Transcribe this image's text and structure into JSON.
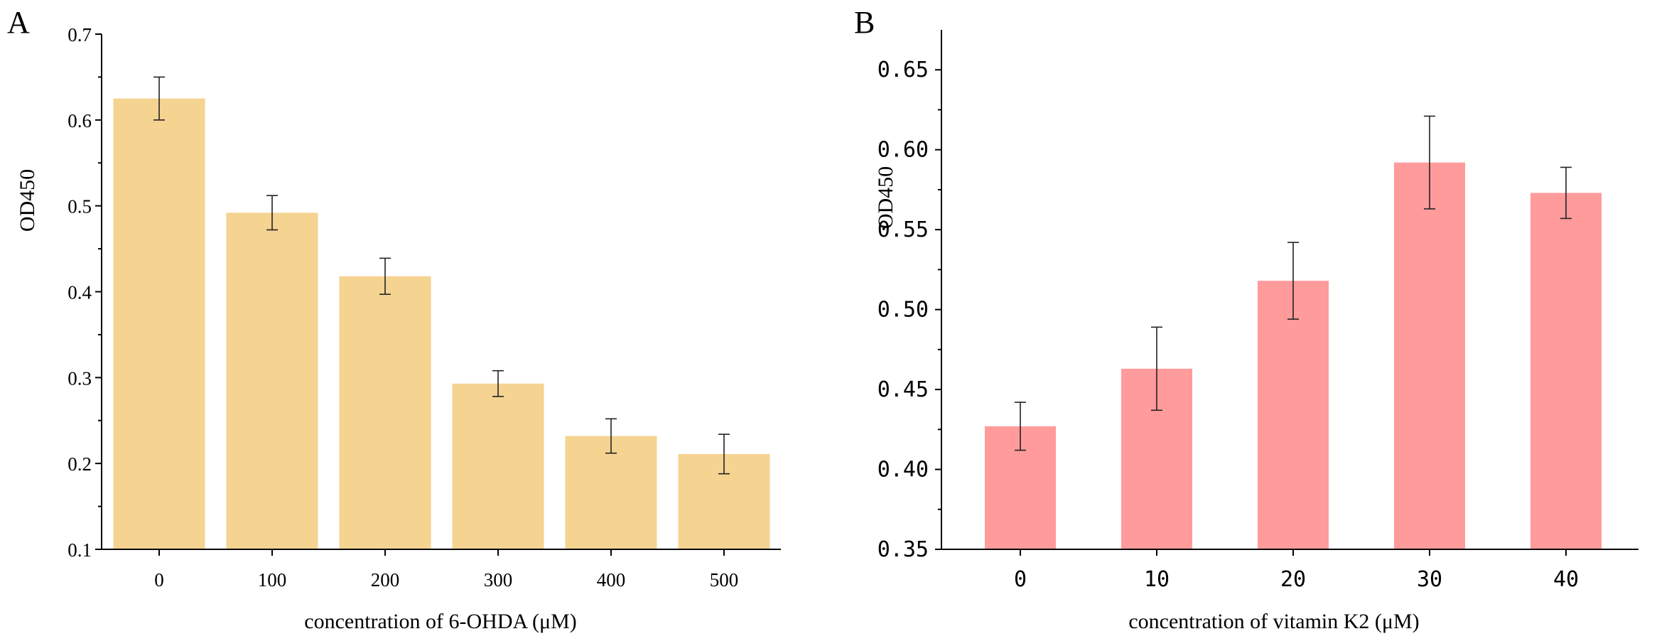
{
  "chart_data": [
    {
      "panel": "A",
      "type": "bar",
      "categories": [
        "0",
        "100",
        "200",
        "300",
        "400",
        "500"
      ],
      "values": [
        0.625,
        0.492,
        0.418,
        0.293,
        0.232,
        0.211
      ],
      "errors": [
        0.025,
        0.02,
        0.021,
        0.015,
        0.02,
        0.023
      ],
      "xlabel": "concentration of 6-OHDA (μM)",
      "ylabel": "OD450",
      "ylim": [
        0.1,
        0.7
      ],
      "yticks": [
        "0.1",
        "0.2",
        "0.3",
        "0.4",
        "0.5",
        "0.6",
        "0.7"
      ],
      "color": "#F5D391",
      "grid": false
    },
    {
      "panel": "B",
      "type": "bar",
      "categories": [
        "0",
        "10",
        "20",
        "30",
        "40"
      ],
      "values": [
        0.427,
        0.463,
        0.518,
        0.592,
        0.573
      ],
      "errors": [
        0.015,
        0.026,
        0.024,
        0.029,
        0.016
      ],
      "xlabel": "concentration of vitamin K2 (μM)",
      "ylabel": "OD450",
      "ylim": [
        0.35,
        0.675
      ],
      "yticks": [
        "0.35",
        "0.40",
        "0.45",
        "0.50",
        "0.55",
        "0.60",
        "0.65"
      ],
      "color": "#FF9B9B",
      "grid": false
    }
  ]
}
